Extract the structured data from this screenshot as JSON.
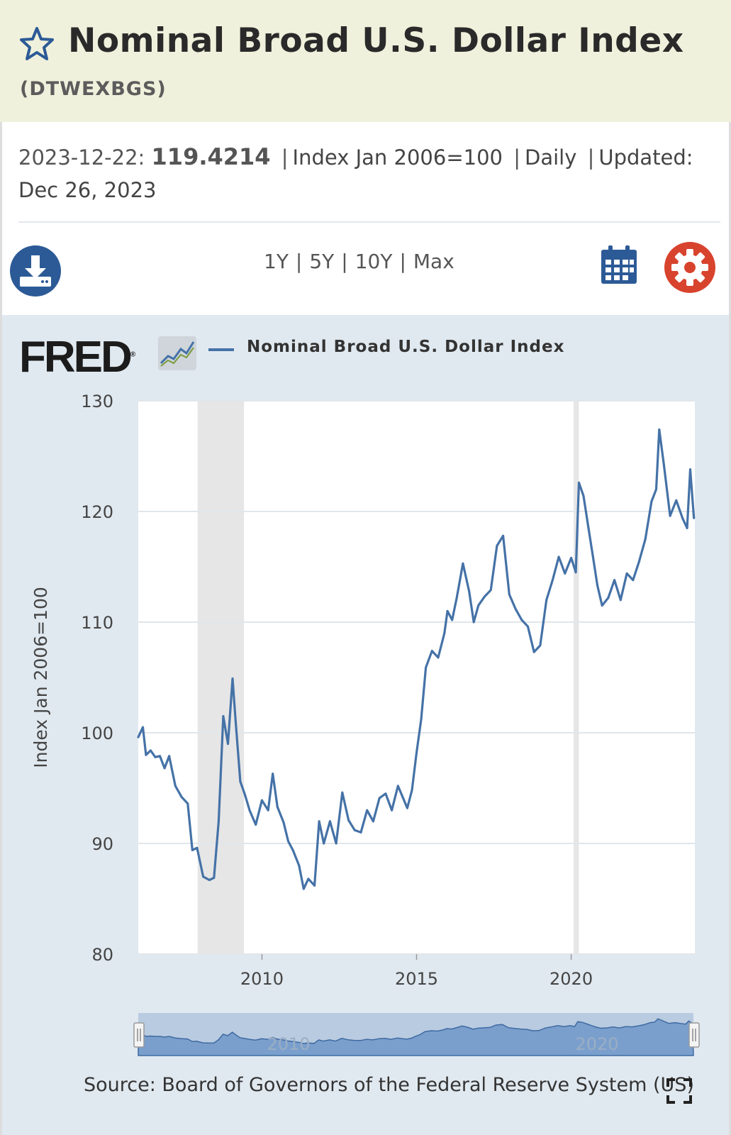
{
  "header": {
    "title": "Nominal Broad U.S. Dollar Index",
    "series_id": "(DTWEXBGS)"
  },
  "info": {
    "date": "2023-12-22:",
    "value": "119.4214",
    "units": "Index Jan 2006=100",
    "frequency": "Daily",
    "updated_label": "Updated:",
    "updated_date": "Dec 26, 2023"
  },
  "toolbar": {
    "ranges": [
      "1Y",
      "5Y",
      "10Y",
      "Max"
    ],
    "icons": [
      "download-icon",
      "calendar-icon",
      "gear-icon"
    ]
  },
  "legend": {
    "brand": "FRED",
    "series_name": "Nominal Broad U.S. Dollar Index"
  },
  "source": "Source: Board of Governors of the Federal Reserve System (US)",
  "colors": {
    "header_bg": "#f0f1dc",
    "panel_bg": "#e1e9f0",
    "series": "#4572a7",
    "accent_blue": "#2c5a96",
    "gear_red": "#d8432e",
    "recession": "#e6e6e6"
  },
  "chart_data": {
    "type": "line",
    "title": "",
    "xlabel": "",
    "ylabel": "Index Jan 2006=100",
    "xlim": [
      2006.0,
      2024.0
    ],
    "ylim": [
      80,
      130
    ],
    "yticks": [
      80,
      90,
      100,
      110,
      120,
      130
    ],
    "xticks": [
      2010,
      2015,
      2020
    ],
    "grid": true,
    "legend_position": "top",
    "recession_shading": [
      [
        2007.92,
        2009.42
      ],
      [
        2020.08,
        2020.25
      ]
    ],
    "navigator_labels": [
      "2010",
      "2020"
    ],
    "series": [
      {
        "name": "Nominal Broad U.S. Dollar Index",
        "x": [
          2006.0,
          2006.15,
          2006.25,
          2006.4,
          2006.55,
          2006.7,
          2006.85,
          2007.0,
          2007.2,
          2007.4,
          2007.6,
          2007.75,
          2007.9,
          2008.1,
          2008.3,
          2008.45,
          2008.6,
          2008.75,
          2008.9,
          2009.05,
          2009.15,
          2009.3,
          2009.45,
          2009.6,
          2009.8,
          2010.0,
          2010.2,
          2010.35,
          2010.5,
          2010.7,
          2010.85,
          2011.0,
          2011.2,
          2011.35,
          2011.5,
          2011.7,
          2011.85,
          2012.0,
          2012.2,
          2012.4,
          2012.6,
          2012.8,
          2013.0,
          2013.2,
          2013.4,
          2013.6,
          2013.8,
          2014.0,
          2014.2,
          2014.4,
          2014.55,
          2014.7,
          2014.85,
          2015.0,
          2015.15,
          2015.3,
          2015.5,
          2015.7,
          2015.9,
          2016.0,
          2016.15,
          2016.3,
          2016.5,
          2016.7,
          2016.85,
          2017.0,
          2017.2,
          2017.4,
          2017.6,
          2017.8,
          2018.0,
          2018.2,
          2018.4,
          2018.6,
          2018.8,
          2019.0,
          2019.2,
          2019.4,
          2019.6,
          2019.8,
          2020.0,
          2020.15,
          2020.25,
          2020.4,
          2020.55,
          2020.7,
          2020.85,
          2021.0,
          2021.2,
          2021.4,
          2021.6,
          2021.8,
          2022.0,
          2022.2,
          2022.4,
          2022.6,
          2022.75,
          2022.85,
          2023.0,
          2023.2,
          2023.4,
          2023.6,
          2023.75,
          2023.85,
          2023.97
        ],
        "y": [
          99.6,
          100.5,
          98.0,
          98.4,
          97.8,
          97.9,
          96.8,
          97.9,
          95.2,
          94.2,
          93.6,
          89.4,
          89.6,
          87.0,
          86.7,
          86.9,
          92.0,
          101.5,
          99.0,
          104.9,
          101.0,
          95.6,
          94.4,
          93.0,
          91.7,
          93.9,
          93.0,
          96.3,
          93.3,
          91.9,
          90.2,
          89.4,
          88.0,
          85.9,
          86.8,
          86.2,
          92.0,
          90.0,
          92.0,
          90.0,
          94.6,
          92.1,
          91.2,
          91.0,
          93.0,
          92.0,
          94.1,
          94.5,
          93.0,
          95.2,
          94.2,
          93.2,
          94.8,
          98.2,
          101.2,
          105.9,
          107.4,
          106.8,
          109.0,
          111.0,
          110.2,
          112.2,
          115.3,
          112.8,
          110.0,
          111.5,
          112.3,
          112.9,
          116.9,
          117.8,
          112.5,
          111.2,
          110.2,
          109.6,
          107.3,
          107.9,
          112.0,
          113.8,
          115.9,
          114.4,
          115.8,
          114.5,
          122.6,
          121.4,
          118.7,
          116.0,
          113.3,
          111.5,
          112.2,
          113.8,
          112.0,
          114.4,
          113.8,
          115.5,
          117.5,
          120.9,
          122.0,
          127.4,
          124.2,
          119.6,
          121.0,
          119.4,
          118.5,
          123.8,
          119.4
        ]
      }
    ]
  }
}
